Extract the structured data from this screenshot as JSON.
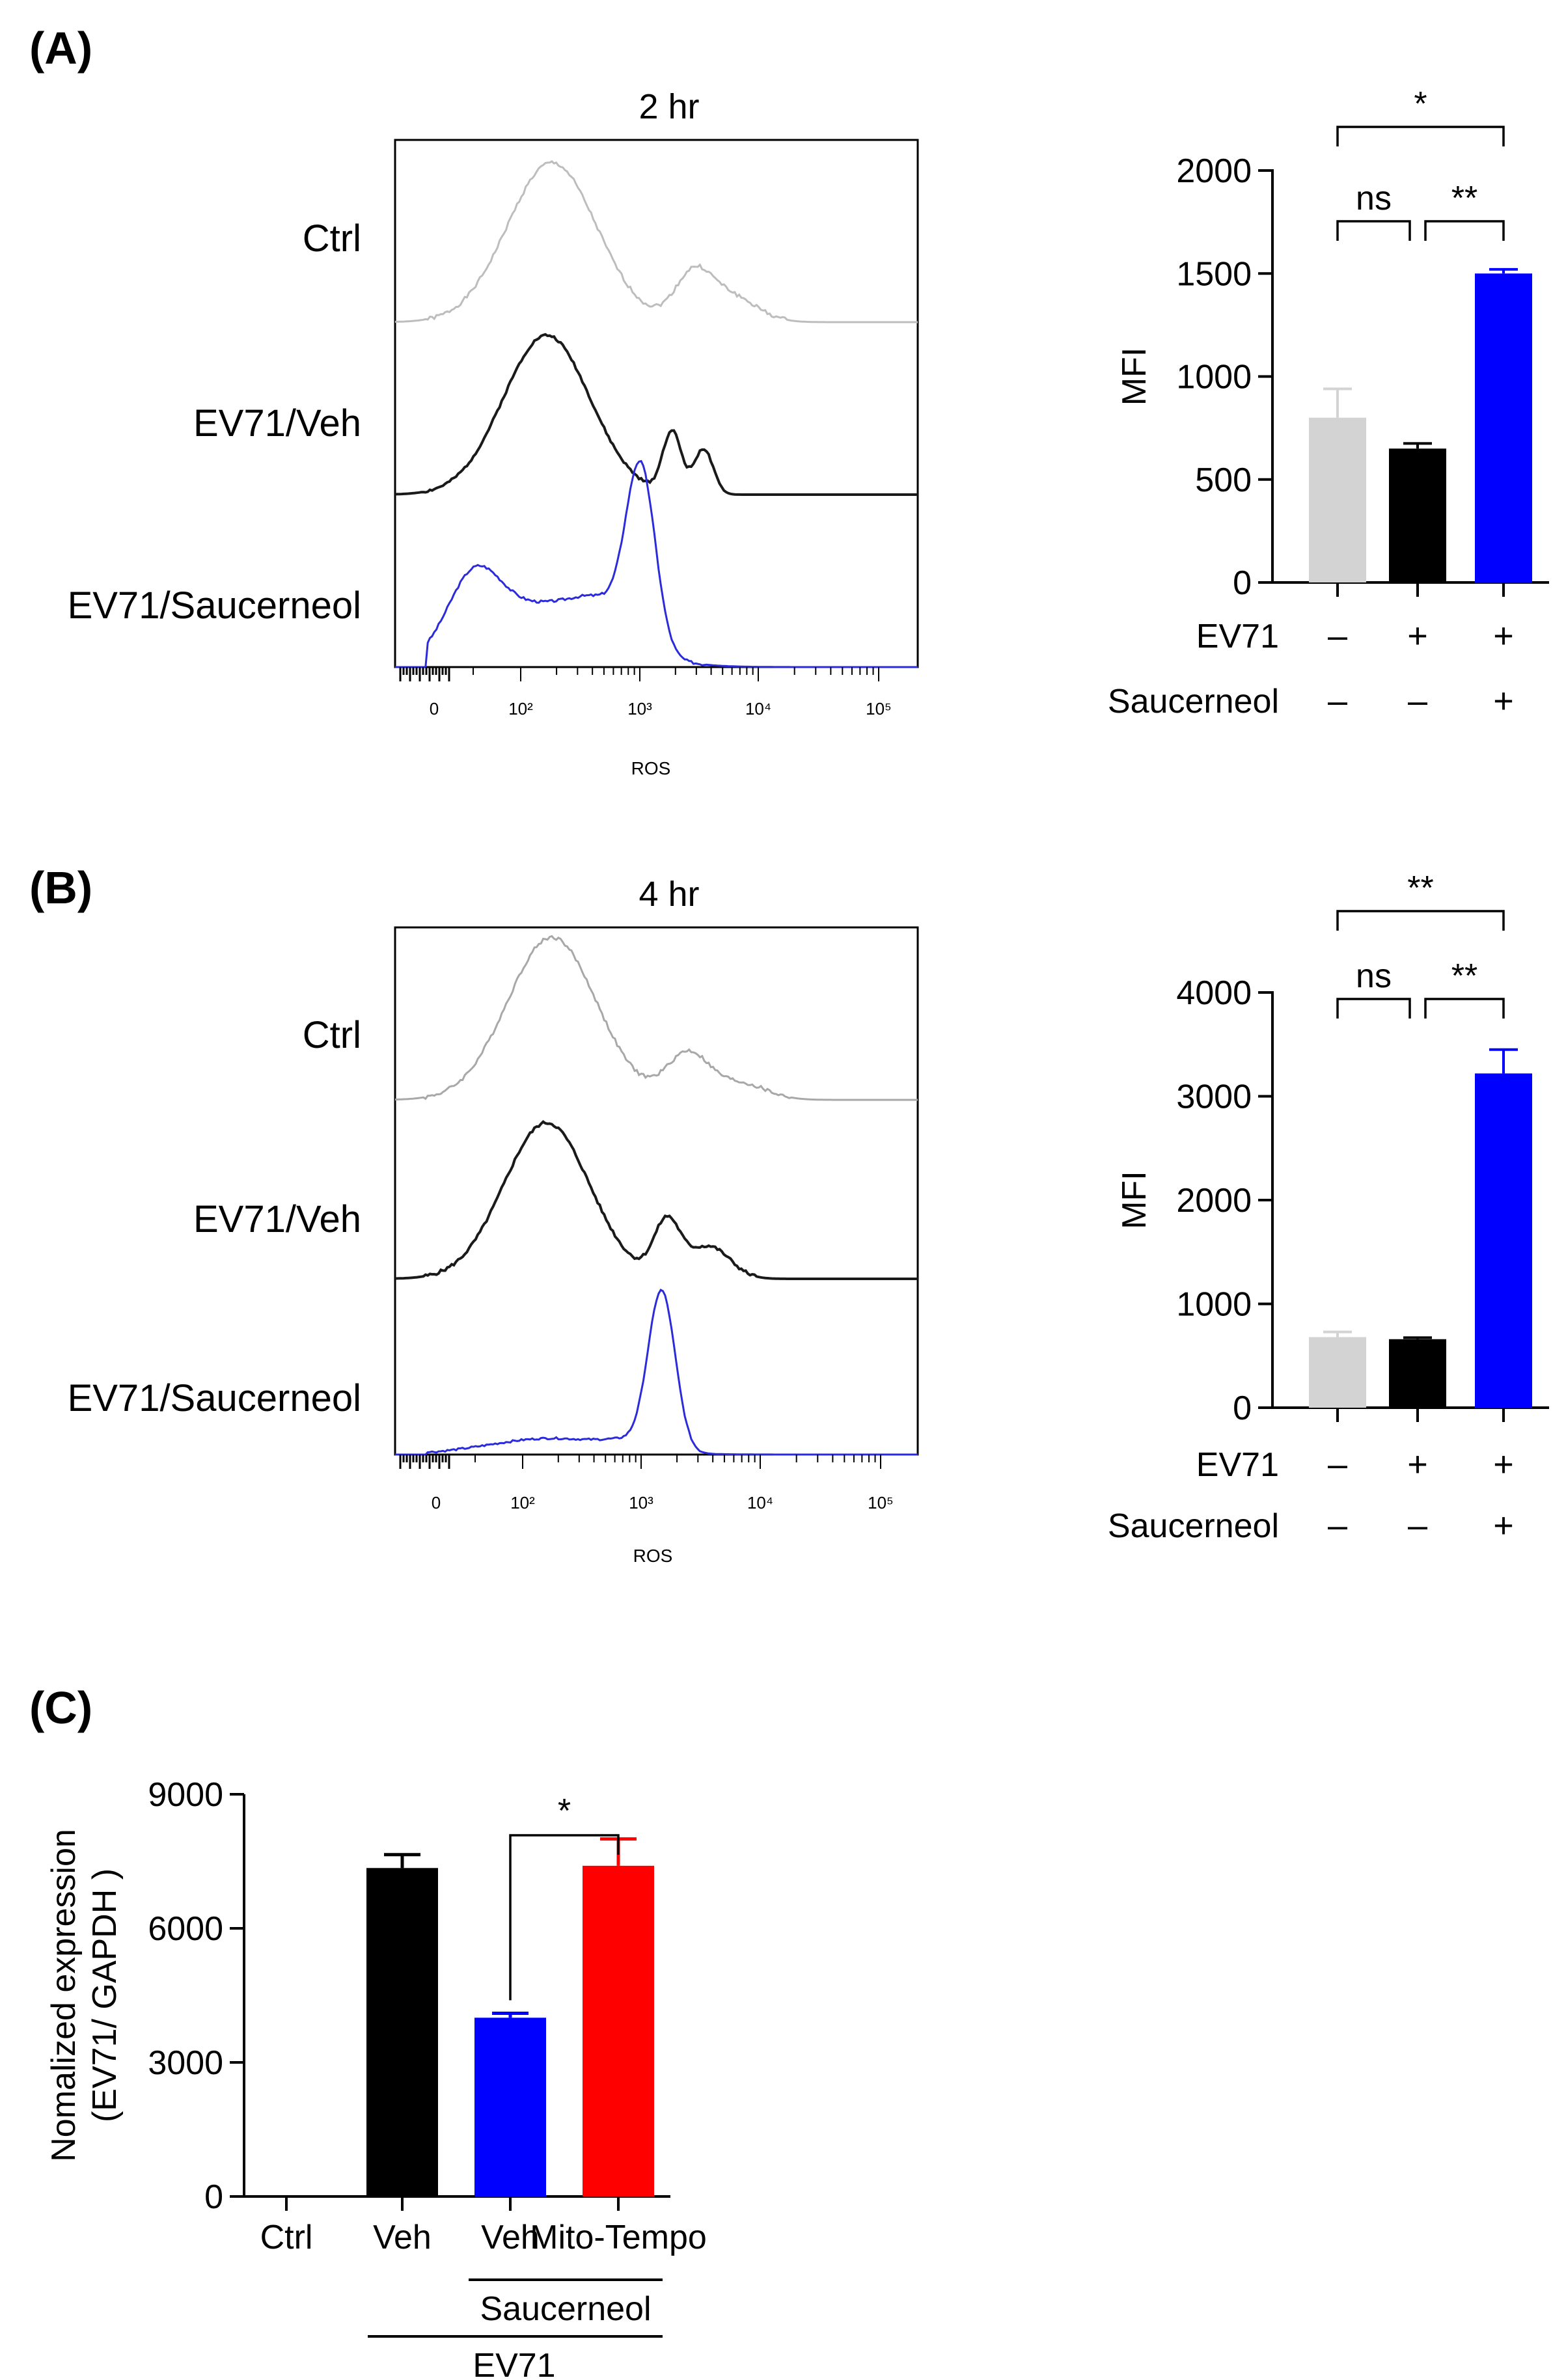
{
  "panels": {
    "A": "(A)",
    "B": "(B)",
    "C": "(C)"
  },
  "histograms": [
    {
      "title": "2 hr",
      "x_label": "ROS",
      "x_ticks": [
        "0",
        "10²",
        "10³",
        "10⁴",
        "10⁵"
      ],
      "tracks": [
        {
          "label": "Ctrl",
          "color": "#bdbdbd"
        },
        {
          "label": "EV71/Veh",
          "color": "#1a1a1a"
        },
        {
          "label": "EV71/Saucerneol",
          "color": "#2b2bd9"
        }
      ]
    },
    {
      "title": "4 hr",
      "x_label": "ROS",
      "x_ticks": [
        "0",
        "10²",
        "10³",
        "10⁴",
        "10⁵"
      ],
      "tracks": [
        {
          "label": "Ctrl",
          "color": "#a8a8a8"
        },
        {
          "label": "EV71/Veh",
          "color": "#1a1a1a"
        },
        {
          "label": "EV71/Saucerneol",
          "color": "#2b2bd9"
        }
      ]
    }
  ],
  "chart_data": [
    {
      "type": "bar",
      "ylabel": "MFI",
      "ylim": [
        0,
        2000
      ],
      "yticks": [
        "0",
        "500",
        "1000",
        "1500",
        "2000"
      ],
      "categories": [
        "Ctrl",
        "EV71/Veh",
        "EV71/Saucerneol"
      ],
      "values": [
        800,
        650,
        1500
      ],
      "errors": [
        140,
        25,
        20
      ],
      "colors": [
        "#d3d3d3",
        "#000000",
        "#0000ff"
      ],
      "conditions": [
        {
          "name": "EV71",
          "signs": [
            "–",
            "+",
            "+"
          ]
        },
        {
          "name": "Saucerneol",
          "signs": [
            "–",
            "–",
            "+"
          ]
        }
      ],
      "significance": [
        {
          "from": 0,
          "to": 1,
          "label": "ns"
        },
        {
          "from": 1,
          "to": 2,
          "label": "**"
        },
        {
          "from": 0,
          "to": 2,
          "label": "*"
        }
      ]
    },
    {
      "type": "bar",
      "ylabel": "MFI",
      "ylim": [
        0,
        4000
      ],
      "yticks": [
        "0",
        "1000",
        "2000",
        "3000",
        "4000"
      ],
      "categories": [
        "Ctrl",
        "EV71/Veh",
        "EV71/Saucerneol"
      ],
      "values": [
        680,
        660,
        3220
      ],
      "errors": [
        50,
        15,
        230
      ],
      "colors": [
        "#d3d3d3",
        "#000000",
        "#0000ff"
      ],
      "conditions": [
        {
          "name": "EV71",
          "signs": [
            "–",
            "+",
            "+"
          ]
        },
        {
          "name": "Saucerneol",
          "signs": [
            "–",
            "–",
            "+"
          ]
        }
      ],
      "significance": [
        {
          "from": 0,
          "to": 1,
          "label": "ns"
        },
        {
          "from": 1,
          "to": 2,
          "label": "**"
        },
        {
          "from": 0,
          "to": 2,
          "label": "**"
        }
      ]
    },
    {
      "type": "bar",
      "ylabel_line1": "Nomalized expression",
      "ylabel_line2": "(EV71/ GAPDH )",
      "ylim": [
        0,
        9000
      ],
      "yticks": [
        "0",
        "3000",
        "6000",
        "9000"
      ],
      "categories": [
        "Ctrl",
        "Veh",
        "Veh",
        "Mito-Tempo"
      ],
      "values": [
        0,
        7350,
        4000,
        7400
      ],
      "errors": [
        0,
        300,
        100,
        600
      ],
      "colors": [
        "#000000",
        "#000000",
        "#0000ff",
        "#ff0000"
      ],
      "group_labels": {
        "saucerneol": "Saucerneol",
        "ev71": "EV71"
      },
      "significance": [
        {
          "from": 2,
          "to": 3,
          "label": "*"
        }
      ]
    }
  ]
}
